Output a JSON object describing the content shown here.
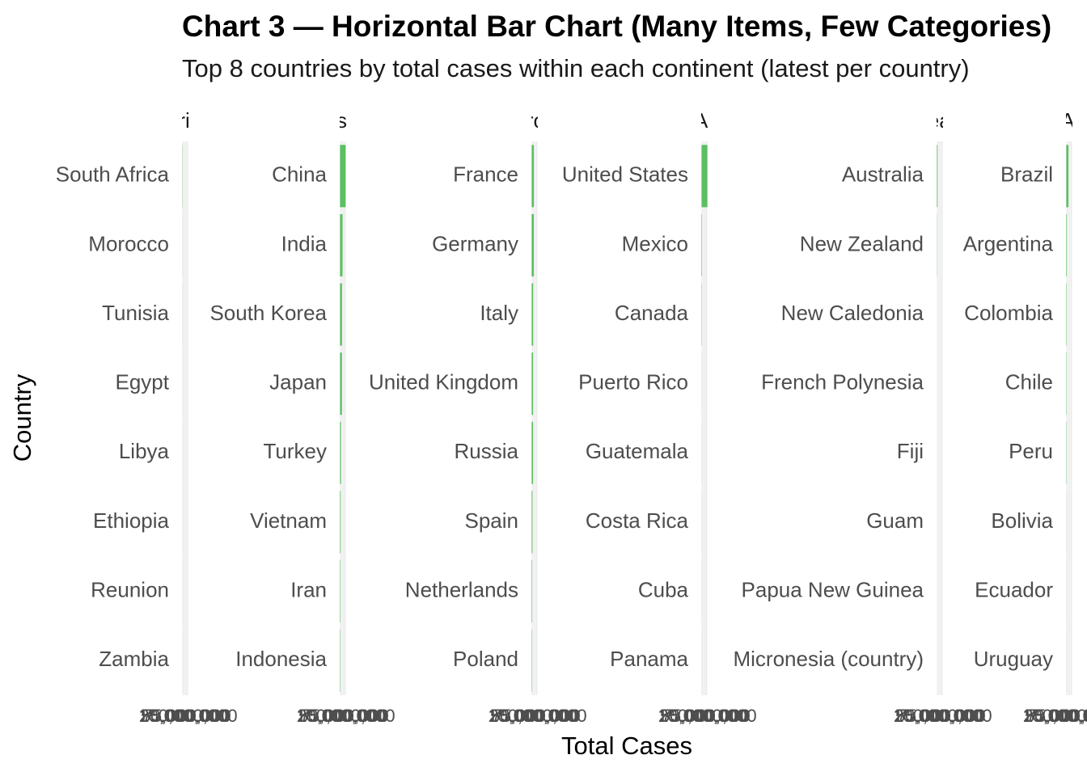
{
  "chart_data": {
    "type": "bar",
    "orientation": "horizontal",
    "title": "Chart 3 — Horizontal Bar Chart (Many Items, Few Categories)",
    "subtitle": "Top 8 countries by total cases within each continent (latest per country)",
    "x_label": "Total Cases",
    "y_label": "Country",
    "color": "#5cbf62",
    "xlim": [
      -5200000,
      108600000
    ],
    "xticks": [
      {
        "value": 0,
        "label": "0"
      },
      {
        "value": 25000000,
        "label": "25,000,000"
      },
      {
        "value": 50000000,
        "label": "50,000,000"
      },
      {
        "value": 75000000,
        "label": "75,000,000"
      },
      {
        "value": 100000000,
        "label": "100,000,000"
      }
    ],
    "panels": [
      {
        "title": "Africa",
        "categories": [
          "South Africa",
          "Morocco",
          "Tunisia",
          "Egypt",
          "Libya",
          "Ethiopia",
          "Reunion",
          "Zambia"
        ],
        "values": [
          4070000,
          1270000,
          1150000,
          516000,
          507000,
          501000,
          494000,
          349000
        ]
      },
      {
        "title": "Asia",
        "categories": [
          "China",
          "India",
          "South Korea",
          "Japan",
          "Turkey",
          "Vietnam",
          "Iran",
          "Indonesia"
        ],
        "values": [
          99370000,
          45000000,
          34570000,
          33800000,
          17000000,
          11600000,
          7600000,
          6800000
        ]
      },
      {
        "title": "Europe",
        "categories": [
          "France",
          "Germany",
          "Italy",
          "United Kingdom",
          "Russia",
          "Spain",
          "Netherlands",
          "Poland"
        ],
        "values": [
          38990000,
          38440000,
          26700000,
          24900000,
          24100000,
          13980000,
          8600000,
          6660000
        ]
      },
      {
        "title": "North America",
        "categories": [
          "United States",
          "Mexico",
          "Canada",
          "Puerto Rico",
          "Guatemala",
          "Costa Rica",
          "Cuba",
          "Panama"
        ],
        "values": [
          103400000,
          7600000,
          4800000,
          1250000,
          1250000,
          1240000,
          1110000,
          1040000
        ]
      },
      {
        "title": "Oceania",
        "categories": [
          "Australia",
          "New Zealand",
          "New Caledonia",
          "French Polynesia",
          "Fiji",
          "Guam",
          "Papua New Guinea",
          "Micronesia (country)"
        ],
        "values": [
          11860000,
          2600000,
          80000,
          79000,
          69000,
          52000,
          47000,
          27000
        ]
      },
      {
        "title": "South America",
        "categories": [
          "Brazil",
          "Argentina",
          "Colombia",
          "Chile",
          "Peru",
          "Bolivia",
          "Ecuador",
          "Uruguay"
        ],
        "values": [
          38800000,
          10100000,
          6390000,
          5400000,
          4500000,
          1200000,
          1070000,
          1040000
        ]
      }
    ]
  }
}
